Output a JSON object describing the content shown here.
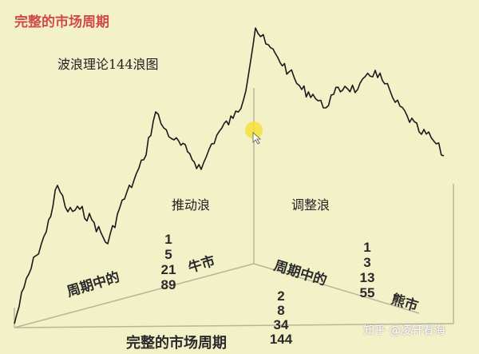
{
  "title": "完整的市场周期",
  "subtitle": "波浪理论144浪图",
  "impulse_label": "推动浪",
  "corrective_label": "调整浪",
  "bull": {
    "prefix": "周期中的",
    "label": "牛市",
    "counts": [
      "1",
      "5",
      "21",
      "89"
    ]
  },
  "bear": {
    "prefix": "周期中的",
    "label": "熊市",
    "counts": [
      "1",
      "3",
      "13",
      "55"
    ]
  },
  "full": {
    "label": "完整的市场周期",
    "counts": [
      "2",
      "8",
      "34",
      "144"
    ]
  },
  "watermark": "知乎 @凌轩看海",
  "colors": {
    "background": "#f3f1c8",
    "title": "#d24a45",
    "cursor": "#f5e23a"
  }
}
